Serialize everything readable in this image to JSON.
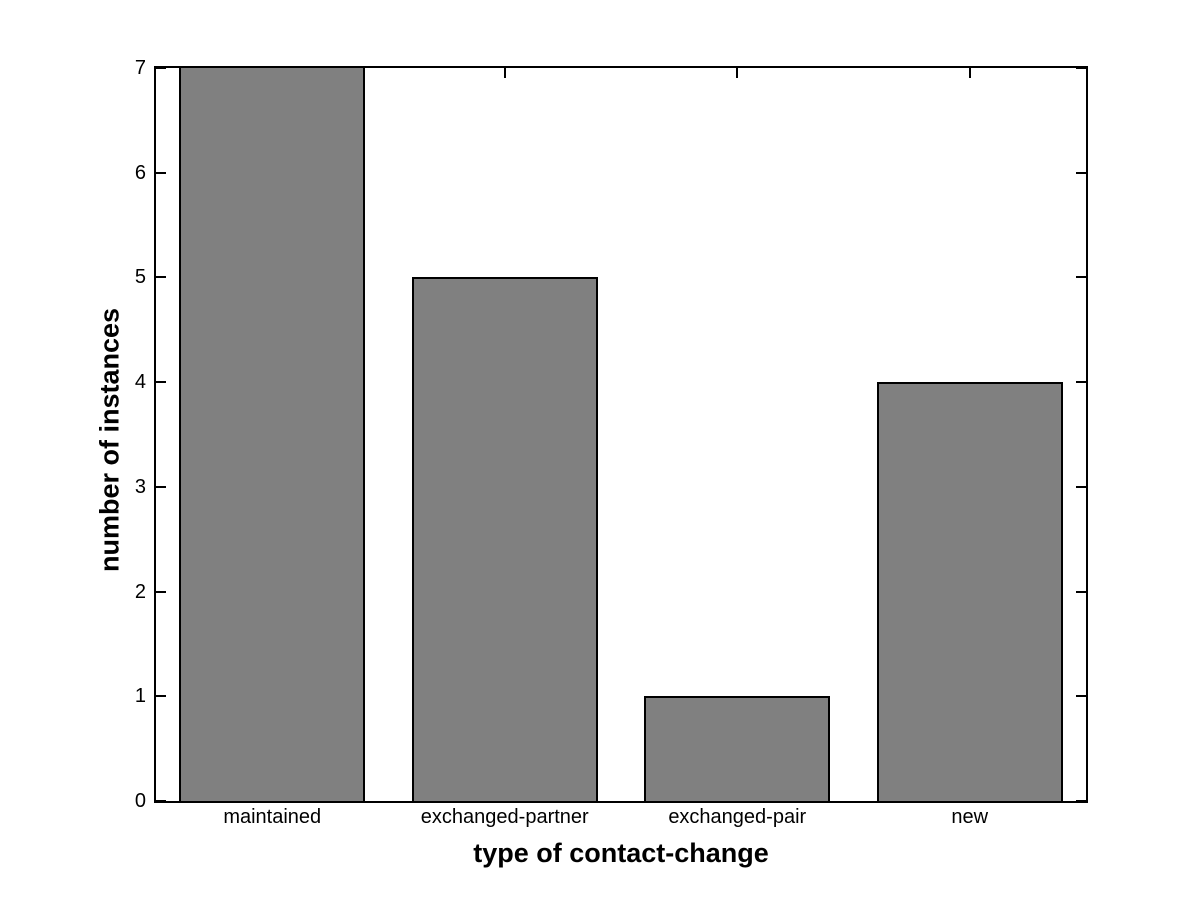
{
  "figure": {
    "background_color": "#ffffff",
    "text_color": "#000000"
  },
  "chart_data": {
    "type": "bar",
    "categories": [
      "maintained",
      "exchanged-partner",
      "exchanged-pair",
      "new"
    ],
    "values": [
      7,
      5,
      1,
      4
    ],
    "title": "",
    "xlabel": "type of contact-change",
    "ylabel": "number of instances",
    "ylim": [
      0,
      7
    ],
    "yticks": [
      0,
      1,
      2,
      3,
      4,
      5,
      6,
      7
    ],
    "bar_width_fraction": 0.8,
    "grid": false,
    "legend": null,
    "bar_fill_color": "#808080",
    "bar_edge_color": "#000000",
    "axis_color": "#000000"
  }
}
